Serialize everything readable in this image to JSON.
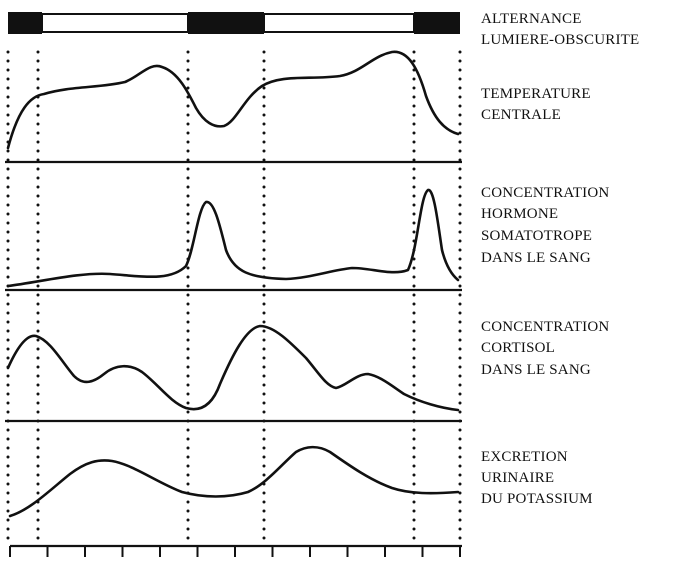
{
  "panels": [
    {
      "id": "light",
      "label_lines": [
        "ALTERNANCE",
        "LUMIERE-OBSCURITE"
      ]
    },
    {
      "id": "temperature",
      "label_lines": [
        "TEMPERATURE",
        "CENTRALE"
      ]
    },
    {
      "id": "somatotrope",
      "label_lines": [
        "CONCENTRATION",
        "HORMONE",
        "SOMATOTROPE",
        "DANS LE SANG"
      ]
    },
    {
      "id": "cortisol",
      "label_lines": [
        "CONCENTRATION",
        "CORTISOL",
        "DANS LE SANG"
      ]
    },
    {
      "id": "potassium",
      "label_lines": [
        "EXCRETION",
        "URINAIRE",
        "DU POTASSIUM"
      ]
    }
  ],
  "light_dark_bar": [
    "dark",
    "light",
    "dark",
    "light",
    "dark"
  ],
  "time_axis": {
    "tick_count": 13
  },
  "colors": {
    "ink": "#111111",
    "background": "#ffffff"
  }
}
